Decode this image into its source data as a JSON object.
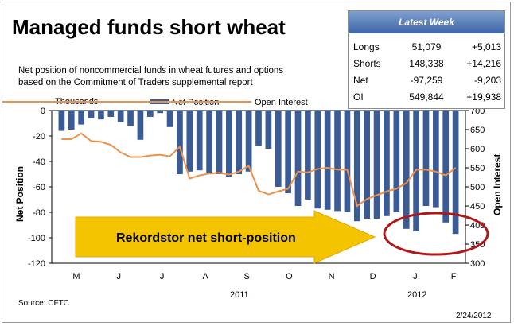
{
  "title": "Managed funds short wheat",
  "subtitle_line1": "Net position of noncommercial funds in wheat futures and options",
  "subtitle_line2": "based on the Commitment of Traders supplemental report",
  "units_label": "Thousands",
  "source": "Source: CFTC",
  "date": "2/24/2012",
  "arrow_text": "Rekordstor net short-position",
  "latest_week": {
    "title": "Latest Week",
    "rows": [
      {
        "label": "Longs",
        "value": "51,079",
        "change": "+5,013"
      },
      {
        "label": "Shorts",
        "value": "148,338",
        "change": "+14,216"
      },
      {
        "label": "Net",
        "value": "-97,259",
        "change": "-9,203"
      },
      {
        "label": "OI",
        "value": "549,844",
        "change": "+19,938"
      }
    ]
  },
  "colors": {
    "bar": "#3a5b94",
    "line": "#f0914a",
    "arrow": "#f5c400",
    "ellipse": "#b01818"
  },
  "chart_data": {
    "type": "bar+line",
    "xlabel": "",
    "ylabel": "Net Position",
    "ylabel_right": "Open Interest",
    "ylim": [
      -120,
      0
    ],
    "ylim_right": [
      300,
      700
    ],
    "yticks": [
      0,
      -20,
      -40,
      -60,
      -80,
      -100,
      -120
    ],
    "yticks_right": [
      700,
      650,
      600,
      550,
      500,
      450,
      400,
      350,
      300
    ],
    "month_labels": [
      "M",
      "J",
      "J",
      "A",
      "S",
      "O",
      "N",
      "D",
      "J",
      "F"
    ],
    "year_labels": [
      "2011",
      "2012"
    ],
    "legend": [
      "Net Position",
      "Open Interest"
    ],
    "series": [
      {
        "name": "Net Position",
        "type": "bar",
        "values": [
          -16,
          -15,
          -11,
          -6,
          -7,
          -5,
          -9,
          -12,
          -23,
          -5,
          -2,
          -13,
          -50,
          -48,
          -47,
          -49,
          -50,
          -52,
          -50,
          -48,
          -28,
          -30,
          -60,
          -65,
          -75,
          -70,
          -77,
          -78,
          -79,
          -80,
          -87,
          -85,
          -85,
          -83,
          -80,
          -93,
          -95,
          -75,
          -76,
          -88,
          -97
        ]
      },
      {
        "name": "Open Interest",
        "type": "line",
        "values": [
          625,
          625,
          640,
          620,
          618,
          610,
          590,
          578,
          578,
          582,
          584,
          580,
          605,
          522,
          530,
          535,
          537,
          532,
          540,
          555,
          490,
          480,
          488,
          495,
          540,
          538,
          547,
          550,
          545,
          545,
          450,
          468,
          478,
          488,
          495,
          510,
          545,
          545,
          540,
          530,
          550
        ]
      }
    ]
  }
}
